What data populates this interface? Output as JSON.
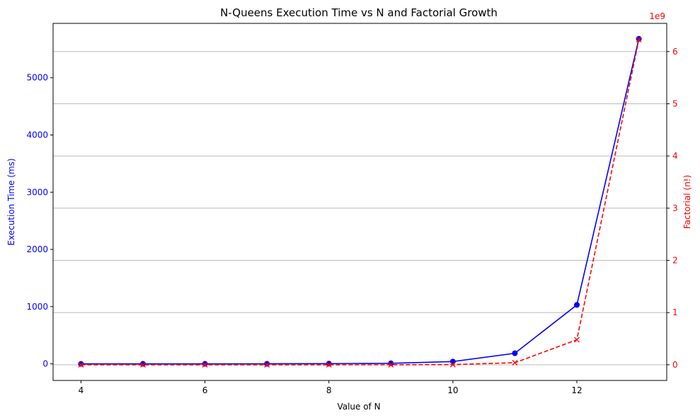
{
  "chart_data": {
    "type": "line",
    "title": "N-Queens Execution Time vs N and Factorial Growth",
    "xlabel": "Value of N",
    "ylabel_left": "Execution Time (ms)",
    "ylabel_right": "Factorial (n!)",
    "right_axis_offset": "1e9",
    "x": [
      4,
      5,
      6,
      7,
      8,
      9,
      10,
      11,
      12,
      13
    ],
    "x_ticks": [
      4,
      6,
      8,
      10,
      12
    ],
    "xlim": [
      3.55,
      13.45
    ],
    "ylim_left": [
      -290,
      5950
    ],
    "ylim_right": [
      -300000000.0,
      6540000000.0
    ],
    "y_ticks_left": [
      0,
      1000,
      2000,
      3000,
      4000,
      5000
    ],
    "y_ticks_right": [
      0,
      1,
      2,
      3,
      4,
      5,
      6
    ],
    "grid": "right-axis horizontal",
    "series": [
      {
        "axis": "left",
        "color": "#0000ff",
        "line_style": "solid",
        "marker": "circle",
        "values": [
          0.05,
          0.2,
          0.5,
          1,
          4,
          10,
          40,
          185,
          1030,
          5680
        ]
      },
      {
        "axis": "right",
        "color": "#ff0000",
        "line_style": "dashed",
        "marker": "x",
        "values": [
          24,
          120,
          720,
          5040,
          40320,
          362880,
          3628800,
          39916800,
          479001600,
          6227020800
        ]
      }
    ]
  },
  "colors": {
    "left_axis": "#0000ff",
    "right_axis": "#ff0000",
    "grid": "#b0b0b0"
  }
}
